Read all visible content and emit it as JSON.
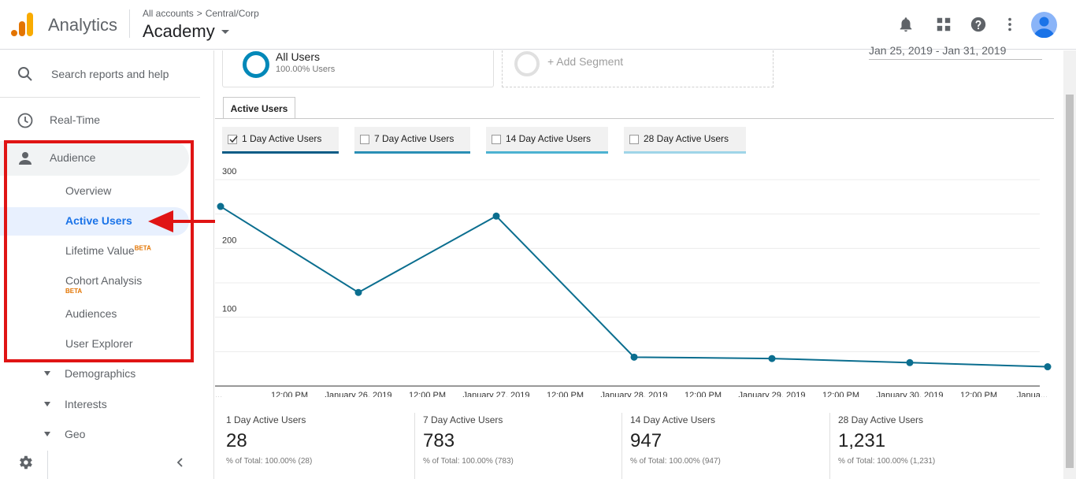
{
  "header": {
    "app_name": "Analytics",
    "breadcrumb": {
      "root": "All accounts",
      "sep": ">",
      "account": "Central/Corp"
    },
    "view_name": "Academy",
    "colors": {
      "logo_dark": "#e37400",
      "logo_light": "#f9ab00",
      "avatar": "#1a73e8"
    },
    "icons": [
      "bell-icon",
      "apps-grid-icon",
      "help-icon",
      "more-vert-icon",
      "avatar"
    ]
  },
  "sidebar": {
    "search_placeholder": "Search reports and help",
    "realtime": "Real-Time",
    "audience": "Audience",
    "sub_items": [
      {
        "label": "Overview"
      },
      {
        "label": "Active Users",
        "active": true
      },
      {
        "label": "Lifetime Value",
        "badge": "BETA"
      },
      {
        "label": "Cohort Analysis",
        "badge": "BETA"
      },
      {
        "label": "Audiences"
      },
      {
        "label": "User Explorer"
      }
    ],
    "tree_items": [
      "Demographics",
      "Interests",
      "Geo"
    ]
  },
  "segments": {
    "primary": {
      "name": "All Users",
      "sub": "100.00% Users"
    },
    "add": "+ Add Segment",
    "date_range": "Jan 25, 2019 - Jan 31, 2019"
  },
  "tab": "Active Users",
  "metrics": [
    {
      "label": "1 Day Active Users",
      "checked": true,
      "color": "#0b5c86"
    },
    {
      "label": "7 Day Active Users",
      "checked": false,
      "color": "#2a8fb5"
    },
    {
      "label": "14 Day Active Users",
      "checked": false,
      "color": "#4cb2d1"
    },
    {
      "label": "28 Day Active Users",
      "checked": false,
      "color": "#9fd5e8"
    }
  ],
  "chart_data": {
    "type": "line",
    "series": [
      {
        "name": "1 Day Active Users",
        "color": "#0b6e8f",
        "values": [
          261,
          136,
          247,
          42,
          40,
          34,
          28
        ]
      }
    ],
    "ylim": [
      0,
      300
    ],
    "yticks": [
      100,
      200,
      300
    ],
    "xticks": [
      "...",
      "12:00 PM",
      "January 26, 2019",
      "12:00 PM",
      "January 27, 2019",
      "12:00 PM",
      "January 28, 2019",
      "12:00 PM",
      "January 29, 2019",
      "12:00 PM",
      "January 30, 2019",
      "12:00 PM",
      "Janua..."
    ],
    "grid": true
  },
  "scorecards": [
    {
      "label": "1 Day Active Users",
      "value": "28",
      "sub": "% of Total: 100.00% (28)"
    },
    {
      "label": "7 Day Active Users",
      "value": "783",
      "sub": "% of Total: 100.00% (783)"
    },
    {
      "label": "14 Day Active Users",
      "value": "947",
      "sub": "% of Total: 100.00% (947)"
    },
    {
      "label": "28 Day Active Users",
      "value": "1,231",
      "sub": "% of Total: 100.00% (1,231)"
    }
  ]
}
